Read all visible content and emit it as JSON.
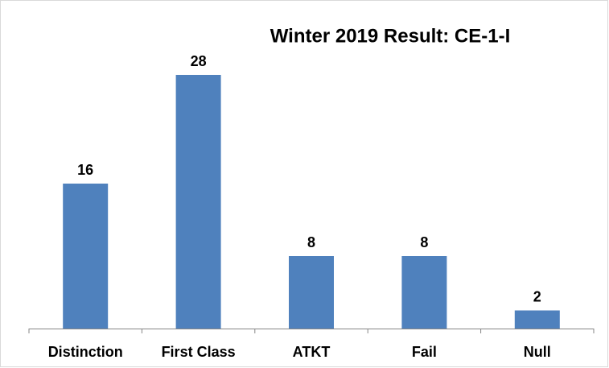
{
  "chart_data": {
    "type": "bar",
    "title": "Winter 2019 Result: CE-1-I",
    "categories": [
      "Distinction",
      "First Class",
      "ATKT",
      "Fail",
      "Null"
    ],
    "values": [
      16,
      28,
      8,
      8,
      2
    ],
    "color": "#4f81bd"
  }
}
